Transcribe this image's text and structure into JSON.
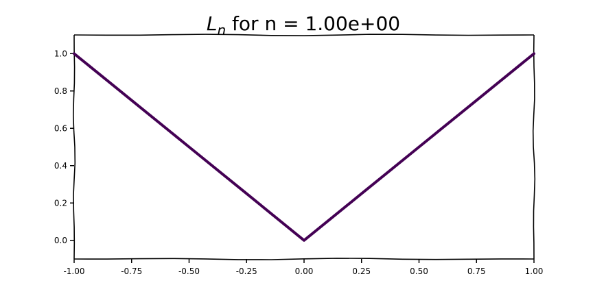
{
  "chart_data": {
    "type": "line",
    "title_main": "L",
    "title_sub": "n",
    "title_rest": " for n = 1.00e+00",
    "xlabel": "",
    "ylabel": "",
    "xlim": [
      -1.0,
      1.0
    ],
    "ylim": [
      -0.1,
      1.1
    ],
    "xticks": [
      -1.0,
      -0.75,
      -0.5,
      -0.25,
      0.0,
      0.25,
      0.5,
      0.75,
      1.0
    ],
    "xtick_labels": [
      "-1.00",
      "-0.75",
      "-0.50",
      "-0.25",
      "0.00",
      "0.25",
      "0.50",
      "0.75",
      "1.00"
    ],
    "yticks": [
      0.0,
      0.2,
      0.4,
      0.6,
      0.8,
      1.0
    ],
    "ytick_labels": [
      "0.0",
      "0.2",
      "0.4",
      "0.6",
      "0.8",
      "1.0"
    ],
    "grid": false,
    "style": "xkcd",
    "series": [
      {
        "color": "#440154",
        "x": [
          -1.0,
          -0.75,
          -0.5,
          -0.25,
          0.0,
          0.25,
          0.5,
          0.75,
          1.0
        ],
        "y": [
          1.0,
          0.75,
          0.5,
          0.25,
          0.0,
          0.25,
          0.5,
          0.75,
          1.0
        ]
      }
    ]
  }
}
